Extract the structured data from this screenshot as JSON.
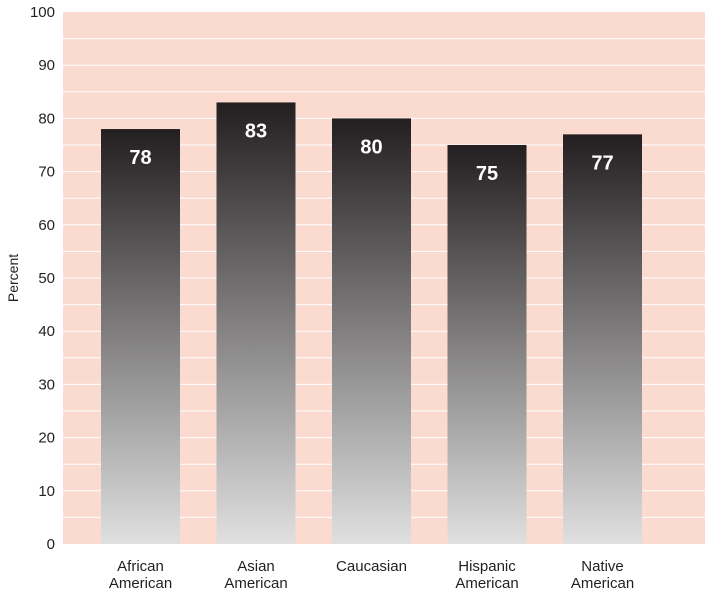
{
  "chart_data": {
    "type": "bar",
    "categories": [
      [
        "African",
        "American"
      ],
      [
        "Asian",
        "American"
      ],
      [
        "Caucasian"
      ],
      [
        "Hispanic",
        "American"
      ],
      [
        "Native",
        "American"
      ]
    ],
    "values": [
      78,
      83,
      80,
      75,
      77
    ],
    "data_labels": [
      "78",
      "83",
      "80",
      "75",
      "77"
    ],
    "title": "",
    "xlabel": "",
    "ylabel": "Percent",
    "ylim": [
      0,
      100
    ],
    "yticks": [
      0,
      10,
      20,
      30,
      40,
      50,
      60,
      70,
      80,
      90,
      100
    ],
    "ytick_labels": [
      "0",
      "10",
      "20",
      "30",
      "40",
      "50",
      "60",
      "70",
      "80",
      "90",
      "100"
    ],
    "minor_gridlines_every": 5,
    "grid": true,
    "legend": "none"
  },
  "colors": {
    "plot_background": "#fbdbd0",
    "gridline": "#ffffff",
    "bar_top": "#231f20",
    "bar_bottom": "#e0e0e0",
    "text": "#231f20",
    "data_label": "#ffffff"
  }
}
